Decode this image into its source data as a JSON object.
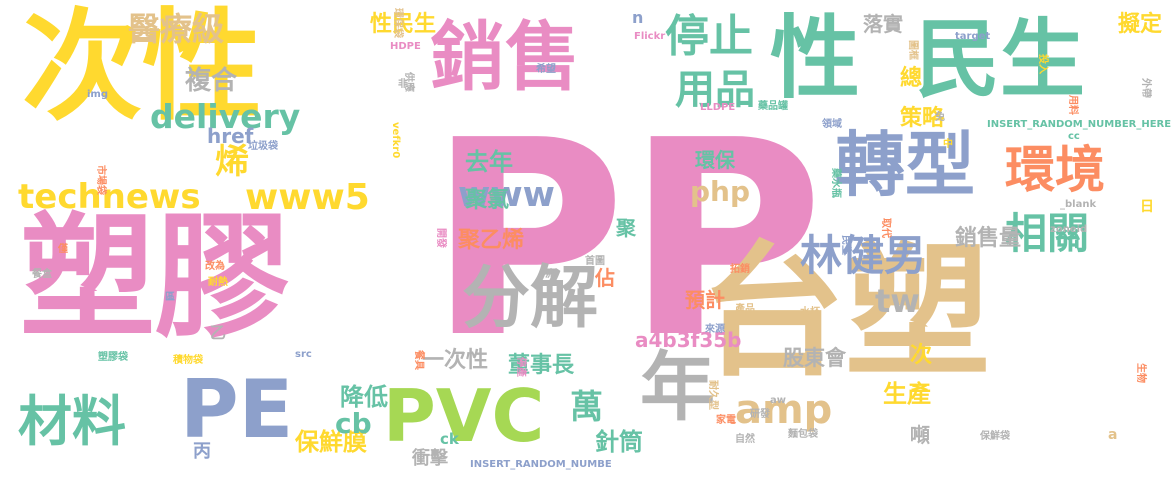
{
  "words": [
    {
      "text": "PP",
      "color": "#E98CC3"
    },
    {
      "text": "塑膠",
      "color": "#E98CC3"
    },
    {
      "text": "台塑",
      "color": "#E3C28B"
    },
    {
      "text": "次性",
      "color": "#FFD92F"
    },
    {
      "text": "民生",
      "color": "#66C2A5"
    },
    {
      "text": "性",
      "color": "#66C2A5"
    },
    {
      "text": "銷售",
      "color": "#E98CC3"
    },
    {
      "text": "轉型",
      "color": "#8DA0CB"
    },
    {
      "text": "環境",
      "color": "#FC8D62"
    },
    {
      "text": "分解",
      "color": "#B3B3B3"
    },
    {
      "text": "年",
      "color": "#B3B3B3"
    },
    {
      "text": "PVC",
      "color": "#A6D854"
    },
    {
      "text": "PE",
      "color": "#8DA0CB"
    },
    {
      "text": "材料",
      "color": "#66C2A5"
    },
    {
      "text": "停止",
      "color": "#66C2A5"
    },
    {
      "text": "用品",
      "color": "#66C2A5"
    },
    {
      "text": "林健男",
      "color": "#8DA0CB"
    },
    {
      "text": "相關",
      "color": "#66C2A5"
    },
    {
      "text": "technews",
      "color": "#FFD92F"
    },
    {
      "text": "www5",
      "color": "#FFD92F"
    },
    {
      "text": "delivery",
      "color": "#66C2A5"
    },
    {
      "text": "醫療級",
      "color": "#E3C28B"
    },
    {
      "text": "烯",
      "color": "#FFD92F"
    },
    {
      "text": "複合",
      "color": "#B3B3B3"
    },
    {
      "text": "href",
      "color": "#8DA0CB"
    },
    {
      "text": "www",
      "color": "#8DA0CB"
    },
    {
      "text": "php",
      "color": "#E3C28B"
    },
    {
      "text": "去年",
      "color": "#66C2A5"
    },
    {
      "text": "聚氯",
      "color": "#66C2A5"
    },
    {
      "text": "tw",
      "color": "#B3B3B3"
    },
    {
      "text": "amp",
      "color": "#E3C28B"
    },
    {
      "text": "一次性",
      "color": "#B3B3B3"
    },
    {
      "text": "萬",
      "color": "#66C2A5"
    },
    {
      "text": "針筒",
      "color": "#66C2A5"
    },
    {
      "text": "保鮮膜",
      "color": "#FFD92F"
    },
    {
      "text": "cb",
      "color": "#66C2A5"
    },
    {
      "text": "降低",
      "color": "#66C2A5"
    },
    {
      "text": "丙",
      "color": "#8DA0CB"
    },
    {
      "text": "ck",
      "color": "#66C2A5"
    },
    {
      "text": "衝擊",
      "color": "#B3B3B3"
    },
    {
      "text": "董事長",
      "color": "#66C2A5"
    },
    {
      "text": "a4b3f35b",
      "color": "#E98CC3"
    },
    {
      "text": "股東會",
      "color": "#B3B3B3"
    },
    {
      "text": "噸",
      "color": "#B3B3B3"
    },
    {
      "text": "生產",
      "color": "#FFD92F"
    },
    {
      "text": "銷售量",
      "color": "#B3B3B3"
    },
    {
      "text": "預計",
      "color": "#FC8D62"
    },
    {
      "text": "佔",
      "color": "#FC8D62"
    },
    {
      "text": "聚乙烯",
      "color": "#FC8D62"
    },
    {
      "text": "聚",
      "color": "#66C2A5"
    },
    {
      "text": "環保",
      "color": "#66C2A5"
    },
    {
      "text": "落實",
      "color": "#B3B3B3"
    },
    {
      "text": "總",
      "color": "#FFD92F"
    },
    {
      "text": "策略",
      "color": "#FFD92F"
    },
    {
      "text": "擬定",
      "color": "#FFD92F"
    },
    {
      "text": "性民生",
      "color": "#FFD92F"
    },
    {
      "text": "次",
      "color": "#FFD92F"
    },
    {
      "text": "乙",
      "color": "#B3B3B3"
    },
    {
      "text": "a",
      "color": "#E3C28B"
    },
    {
      "text": "n",
      "color": "#8DA0CB"
    },
    {
      "text": "環保袋",
      "color": "#E3C28B"
    },
    {
      "text": "HDPE",
      "color": "#E98CC3"
    },
    {
      "text": "供應",
      "color": "#B3B3B3"
    },
    {
      "text": "非",
      "color": "#B3B3B3"
    },
    {
      "text": "img",
      "color": "#8DA0CB"
    },
    {
      "text": "vefkr0",
      "color": "#FFD92F"
    },
    {
      "text": "希望",
      "color": "#8DA0CB"
    },
    {
      "text": "Flickr",
      "color": "#E98CC3"
    },
    {
      "text": "LLDPE",
      "color": "#E98CC3"
    },
    {
      "text": "藥品罐",
      "color": "#66C2A5"
    },
    {
      "text": "target",
      "color": "#8DA0CB"
    },
    {
      "text": "圖框",
      "color": "#E3C28B"
    },
    {
      "text": "投入",
      "color": "#FFD92F"
    },
    {
      "text": "用料",
      "color": "#FC8D62"
    },
    {
      "text": "外帶",
      "color": "#B3B3B3"
    },
    {
      "text": "領域",
      "color": "#8DA0CB"
    },
    {
      "text": "免",
      "color": "#B3B3B3"
    },
    {
      "text": "INSERT_RANDOM_NUMBER_HERE",
      "color": "#66C2A5"
    },
    {
      "text": "cc",
      "color": "#66C2A5"
    },
    {
      "text": "市場袋",
      "color": "#FC8D62"
    },
    {
      "text": "垃圾袋",
      "color": "#8DA0CB"
    },
    {
      "text": "中",
      "color": "#FFD92F"
    },
    {
      "text": "藥水瓶",
      "color": "#66C2A5"
    },
    {
      "text": "_blank",
      "color": "#B3B3B3"
    },
    {
      "text": "zoneid",
      "color": "#B3B3B3"
    },
    {
      "text": "日",
      "color": "#FFD92F"
    },
    {
      "text": "取代",
      "color": "#FC8D62"
    },
    {
      "text": "餐盒",
      "color": "#B3B3B3"
    },
    {
      "text": "開發",
      "color": "#E98CC3"
    },
    {
      "text": "首圖",
      "color": "#B3B3B3"
    },
    {
      "text": "民生",
      "color": "#8DA0CB"
    },
    {
      "text": "拓銷",
      "color": "#FC8D62"
    },
    {
      "text": "僅",
      "color": "#FC8D62"
    },
    {
      "text": "改為",
      "color": "#FC8D62"
    },
    {
      "text": "耐熱",
      "color": "#FFD92F"
    },
    {
      "text": "流",
      "color": "#B3B3B3"
    },
    {
      "text": "產品",
      "color": "#E3C28B"
    },
    {
      "text": "水杯",
      "color": "#E3C28B"
    },
    {
      "text": "來源",
      "color": "#8DA0CB"
    },
    {
      "text": "區",
      "color": "#8DA0CB"
    },
    {
      "text": "src",
      "color": "#8DA0CB"
    },
    {
      "text": "耐久型",
      "color": "#E3C28B"
    },
    {
      "text": "積物袋",
      "color": "#FFD92F"
    },
    {
      "text": "塑膠袋",
      "color": "#66C2A5"
    },
    {
      "text": "餐具",
      "color": "#FC8D62"
    },
    {
      "text": "停產",
      "color": "#E98CC3"
    },
    {
      "text": "生物",
      "color": "#FC8D62"
    },
    {
      "text": "aw",
      "color": "#B3B3B3"
    },
    {
      "text": "研發",
      "color": "#B3B3B3"
    },
    {
      "text": "家電",
      "color": "#FC8D62"
    },
    {
      "text": "自然",
      "color": "#B3B3B3"
    },
    {
      "text": "麵包袋",
      "color": "#B3B3B3"
    },
    {
      "text": "保鮮袋",
      "color": "#B3B3B3"
    },
    {
      "text": "INSERT_RANDOM_NUMBE",
      "color": "#8DA0CB"
    }
  ]
}
